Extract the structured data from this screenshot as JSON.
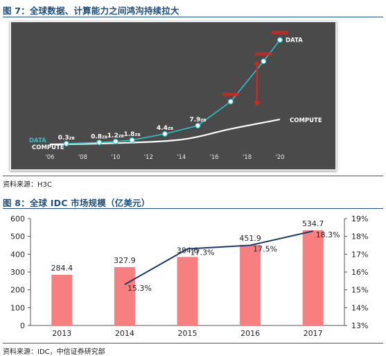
{
  "figure7": {
    "title": "图 7：全球数据、计算能力之间鸿沟持续拉大",
    "source": "资料来源：H3C"
  },
  "figure8": {
    "title": "图 8：全球 IDC 市场规模（亿美元）",
    "source": "资料来源：IDC，中信证券研究部"
  },
  "colors": {
    "title_blue": "#1f4e79",
    "panel_bg": "#4a4a4a",
    "data_line": "#2fc2c4",
    "compute_line": "#ffffff",
    "red_label": "#e0231a",
    "bar": "#f77f7f",
    "growth_line": "#1f3864"
  },
  "chart_data": [
    {
      "type": "line",
      "title": "",
      "x_ticks": [
        "'06",
        "'08",
        "'10",
        "'12",
        "'14",
        "'16",
        "'18",
        "'20"
      ],
      "series": [
        {
          "name": "DATA",
          "x": [
            2007,
            2009,
            2010,
            2011,
            2013,
            2015,
            2017,
            2019,
            2020
          ],
          "values": [
            0.3,
            0.8,
            1.2,
            1.8,
            4.4,
            7.9,
            18.0,
            35.0,
            44.0
          ],
          "labels": [
            "0.3",
            "0.8",
            "1.2",
            "1.8",
            "4.4",
            "7.9",
            "",
            "",
            ""
          ],
          "unit": "ZB"
        },
        {
          "name": "COMPUTE",
          "x": [
            2006,
            2010,
            2014,
            2017,
            2020
          ],
          "values": [
            0.0,
            0.5,
            2.0,
            6.5,
            10.5
          ]
        }
      ]
    },
    {
      "type": "bar",
      "title": "",
      "categories": [
        "2013",
        "2014",
        "2015",
        "2016",
        "2017"
      ],
      "series": [
        {
          "values": [
            284.4,
            327.9,
            384.6,
            451.9,
            534.7
          ],
          "labels": [
            "284.4",
            "327.9",
            "384.6",
            "451.9",
            "534.7"
          ],
          "axis": "left"
        },
        {
          "type": "line",
          "values": [
            null,
            15.3,
            17.3,
            17.5,
            18.3
          ],
          "labels": [
            "",
            "15.3%",
            "17.3%",
            "17.5%",
            "18.3%"
          ],
          "axis": "right"
        }
      ],
      "ylim": [
        0,
        600
      ],
      "y_ticks": [
        "0",
        "100",
        "200",
        "300",
        "400",
        "500",
        "600"
      ],
      "y2lim": [
        13,
        19
      ],
      "y2_ticks": [
        "13%",
        "14%",
        "15%",
        "16%",
        "17%",
        "18%",
        "19%"
      ],
      "grid": false
    }
  ]
}
